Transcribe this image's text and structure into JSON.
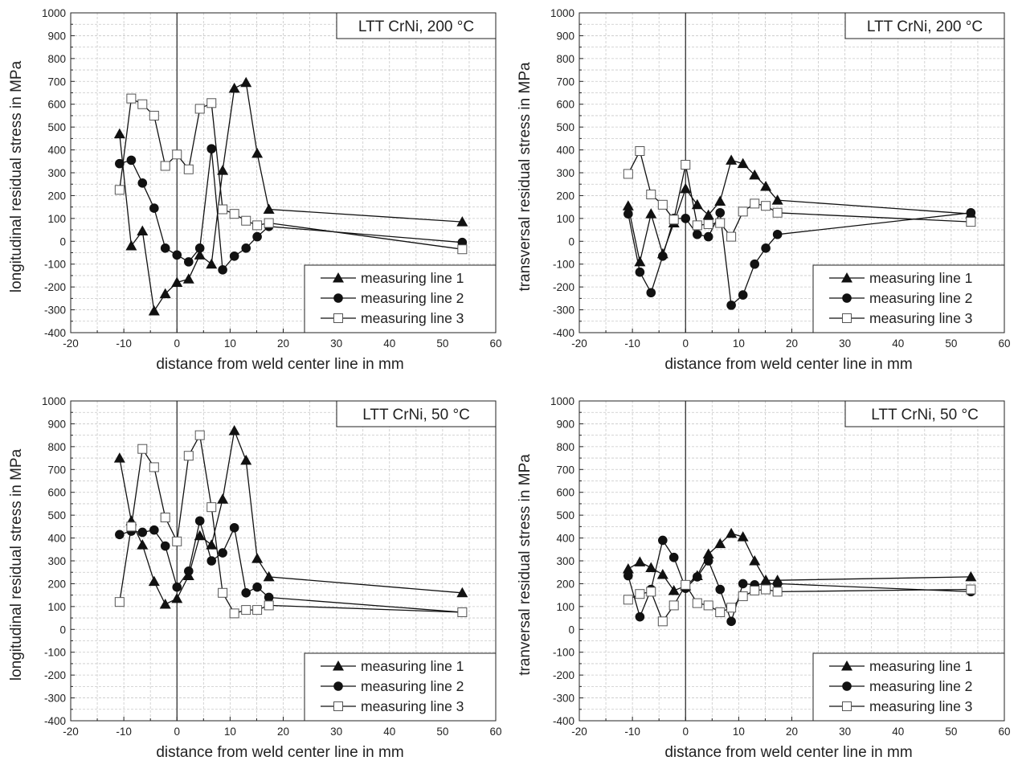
{
  "chart_data": [
    {
      "type": "line",
      "title": "LTT CrNi, 200 °C",
      "xlabel": "distance from weld center line in mm",
      "ylabel": "longitudinal residual stress in MPa",
      "xlim": [
        -20,
        60
      ],
      "ylim": [
        -400,
        1000
      ],
      "xticks": [
        "-20",
        "-10",
        "0",
        "10",
        "20",
        "30",
        "40",
        "50",
        "60"
      ],
      "yticks": [
        "-400",
        "-300",
        "-200",
        "-100",
        "0",
        "100",
        "200",
        "300",
        "400",
        "500",
        "600",
        "700",
        "800",
        "900",
        "1000"
      ],
      "grid": true,
      "legend_position": "bottom-right",
      "series": [
        {
          "name": "measuring line 1",
          "marker": "triangle-filled",
          "x": [
            -10.8,
            -8.6,
            -6.5,
            -4.3,
            -2.2,
            0,
            2.2,
            4.3,
            6.5,
            8.6,
            10.8,
            13,
            15.1,
            17.3,
            53.7
          ],
          "y": [
            470,
            -20,
            45,
            -305,
            -230,
            -180,
            -165,
            -60,
            -100,
            310,
            670,
            695,
            385,
            140,
            85
          ]
        },
        {
          "name": "measuring line 2",
          "marker": "circle-filled",
          "x": [
            -10.8,
            -8.6,
            -6.5,
            -4.3,
            -2.2,
            0,
            2.2,
            4.3,
            6.5,
            8.6,
            10.8,
            13,
            15.1,
            17.3,
            53.7
          ],
          "y": [
            340,
            355,
            255,
            145,
            -30,
            -60,
            -90,
            -30,
            405,
            -125,
            -65,
            -30,
            20,
            65,
            -5
          ]
        },
        {
          "name": "measuring line 3",
          "marker": "square-open",
          "x": [
            -10.8,
            -8.6,
            -6.5,
            -4.3,
            -2.2,
            0,
            2.2,
            4.3,
            6.5,
            8.6,
            10.8,
            13,
            15.1,
            17.3,
            53.7
          ],
          "y": [
            225,
            625,
            600,
            550,
            330,
            380,
            315,
            580,
            605,
            140,
            120,
            90,
            70,
            80,
            -35
          ]
        }
      ]
    },
    {
      "type": "line",
      "title": "LTT CrNi, 200 °C",
      "xlabel": "distance from weld center line in mm",
      "ylabel": "transversal residual stress in MPa",
      "xlim": [
        -20,
        60
      ],
      "ylim": [
        -400,
        1000
      ],
      "xticks": [
        "-20",
        "-10",
        "0",
        "10",
        "20",
        "30",
        "40",
        "50",
        "60"
      ],
      "yticks": [
        "-400",
        "-300",
        "-200",
        "-100",
        "0",
        "100",
        "200",
        "300",
        "400",
        "500",
        "600",
        "700",
        "800",
        "900",
        "1000"
      ],
      "grid": true,
      "legend_position": "bottom-right",
      "series": [
        {
          "name": "measuring line 1",
          "marker": "triangle-filled",
          "x": [
            -10.8,
            -8.6,
            -6.5,
            -4.3,
            -2.2,
            0,
            2.2,
            4.3,
            6.5,
            8.6,
            10.8,
            13,
            15.1,
            17.3,
            53.7
          ],
          "y": [
            155,
            -90,
            120,
            -55,
            80,
            230,
            160,
            115,
            175,
            355,
            340,
            290,
            240,
            180,
            120
          ]
        },
        {
          "name": "measuring line 2",
          "marker": "circle-filled",
          "x": [
            -10.8,
            -8.6,
            -6.5,
            -4.3,
            -2.2,
            0,
            2.2,
            4.3,
            6.5,
            8.6,
            10.8,
            13,
            15.1,
            17.3,
            53.7
          ],
          "y": [
            120,
            -135,
            -225,
            -65,
            100,
            100,
            30,
            20,
            125,
            -280,
            -235,
            -100,
            -30,
            30,
            125
          ]
        },
        {
          "name": "measuring line 3",
          "marker": "square-open",
          "x": [
            -10.8,
            -8.6,
            -6.5,
            -4.3,
            -2.2,
            0,
            2.2,
            4.3,
            6.5,
            8.6,
            10.8,
            13,
            15.1,
            17.3,
            53.7
          ],
          "y": [
            295,
            395,
            205,
            160,
            95,
            335,
            70,
            75,
            80,
            20,
            130,
            165,
            155,
            125,
            85
          ]
        }
      ]
    },
    {
      "type": "line",
      "title": "LTT CrNi, 50 °C",
      "xlabel": "distance from weld center line in mm",
      "ylabel": "longitudinal residual stress in MPa",
      "xlim": [
        -20,
        60
      ],
      "ylim": [
        -400,
        1000
      ],
      "xticks": [
        "-20",
        "-10",
        "0",
        "10",
        "20",
        "30",
        "40",
        "50",
        "60"
      ],
      "yticks": [
        "-400",
        "-300",
        "-200",
        "-100",
        "0",
        "100",
        "200",
        "300",
        "400",
        "500",
        "600",
        "700",
        "800",
        "900",
        "1000"
      ],
      "grid": true,
      "legend_position": "bottom-right",
      "series": [
        {
          "name": "measuring line 1",
          "marker": "triangle-filled",
          "x": [
            -10.8,
            -8.6,
            -6.5,
            -4.3,
            -2.2,
            0,
            2.2,
            4.3,
            6.5,
            8.6,
            10.8,
            13,
            15.1,
            17.3,
            53.7
          ],
          "y": [
            750,
            475,
            370,
            210,
            110,
            135,
            235,
            410,
            370,
            570,
            870,
            740,
            310,
            230,
            160
          ]
        },
        {
          "name": "measuring line 2",
          "marker": "circle-filled",
          "x": [
            -10.8,
            -8.6,
            -6.5,
            -4.3,
            -2.2,
            0,
            2.2,
            4.3,
            6.5,
            8.6,
            10.8,
            13,
            15.1,
            17.3,
            53.7
          ],
          "y": [
            415,
            430,
            425,
            435,
            365,
            185,
            255,
            475,
            300,
            335,
            445,
            160,
            185,
            140,
            75
          ]
        },
        {
          "name": "measuring line 3",
          "marker": "square-open",
          "x": [
            -10.8,
            -8.6,
            -6.5,
            -4.3,
            -2.2,
            0,
            2.2,
            4.3,
            6.5,
            8.6,
            10.8,
            13,
            15.1,
            17.3,
            53.7
          ],
          "y": [
            120,
            450,
            790,
            710,
            490,
            385,
            760,
            850,
            535,
            160,
            70,
            85,
            85,
            105,
            75
          ]
        }
      ]
    },
    {
      "type": "line",
      "title": "LTT CrNi, 50 °C",
      "xlabel": "distance from weld center line in mm",
      "ylabel": "tranversal residual stress in MPa",
      "xlim": [
        -20,
        60
      ],
      "ylim": [
        -400,
        1000
      ],
      "xticks": [
        "-20",
        "-10",
        "0",
        "10",
        "20",
        "30",
        "40",
        "50",
        "60"
      ],
      "yticks": [
        "-400",
        "-300",
        "-200",
        "-100",
        "0",
        "100",
        "200",
        "300",
        "400",
        "500",
        "600",
        "700",
        "800",
        "900",
        "1000"
      ],
      "grid": true,
      "legend_position": "bottom-right",
      "series": [
        {
          "name": "measuring line 1",
          "marker": "triangle-filled",
          "x": [
            -10.8,
            -8.6,
            -6.5,
            -4.3,
            -2.2,
            0,
            2.2,
            4.3,
            6.5,
            8.6,
            10.8,
            13,
            15.1,
            17.3,
            53.7
          ],
          "y": [
            265,
            295,
            270,
            240,
            170,
            190,
            235,
            330,
            375,
            420,
            405,
            300,
            215,
            215,
            230
          ]
        },
        {
          "name": "measuring line 2",
          "marker": "circle-filled",
          "x": [
            -10.8,
            -8.6,
            -6.5,
            -4.3,
            -2.2,
            0,
            2.2,
            4.3,
            6.5,
            8.6,
            10.8,
            13,
            15.1,
            17.3,
            53.7
          ],
          "y": [
            235,
            55,
            175,
            390,
            315,
            180,
            230,
            300,
            175,
            35,
            200,
            195,
            200,
            200,
            165
          ]
        },
        {
          "name": "measuring line 3",
          "marker": "square-open",
          "x": [
            -10.8,
            -8.6,
            -6.5,
            -4.3,
            -2.2,
            0,
            2.2,
            4.3,
            6.5,
            8.6,
            10.8,
            13,
            15.1,
            17.3,
            53.7
          ],
          "y": [
            130,
            155,
            165,
            35,
            105,
            195,
            115,
            105,
            75,
            95,
            145,
            170,
            175,
            165,
            175
          ]
        }
      ]
    }
  ]
}
